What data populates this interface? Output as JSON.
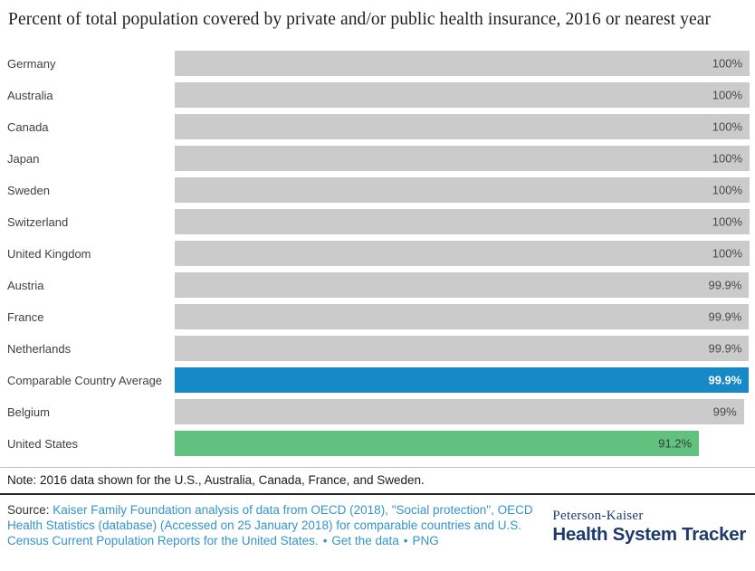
{
  "page": {
    "title": "Percent of total population covered by private and/or public health insurance, 2016 or nearest year"
  },
  "chart_data": {
    "type": "bar",
    "orientation": "horizontal",
    "title": "Percent of total population covered by private and/or public health insurance, 2016 or nearest year",
    "xlim": [
      0,
      100
    ],
    "grid": false,
    "legend": false,
    "categories": [
      "Germany",
      "Australia",
      "Canada",
      "Japan",
      "Sweden",
      "Switzerland",
      "United Kingdom",
      "Austria",
      "France",
      "Netherlands",
      "Comparable Country Average",
      "Belgium",
      "United States"
    ],
    "values": [
      100,
      100,
      100,
      100,
      100,
      100,
      100,
      99.9,
      99.9,
      99.9,
      99.9,
      99,
      91.2
    ],
    "value_labels": [
      "100%",
      "100%",
      "100%",
      "100%",
      "100%",
      "100%",
      "100%",
      "99.9%",
      "99.9%",
      "99.9%",
      "99.9%",
      "99%",
      "91.2%"
    ],
    "rows": [
      {
        "label": "Germany",
        "value": 100,
        "value_label": "100%",
        "type": "default"
      },
      {
        "label": "Australia",
        "value": 100,
        "value_label": "100%",
        "type": "default"
      },
      {
        "label": "Canada",
        "value": 100,
        "value_label": "100%",
        "type": "default"
      },
      {
        "label": "Japan",
        "value": 100,
        "value_label": "100%",
        "type": "default"
      },
      {
        "label": "Sweden",
        "value": 100,
        "value_label": "100%",
        "type": "default"
      },
      {
        "label": "Switzerland",
        "value": 100,
        "value_label": "100%",
        "type": "default"
      },
      {
        "label": "United Kingdom",
        "value": 100,
        "value_label": "100%",
        "type": "default"
      },
      {
        "label": "Austria",
        "value": 99.9,
        "value_label": "99.9%",
        "type": "default"
      },
      {
        "label": "France",
        "value": 99.9,
        "value_label": "99.9%",
        "type": "default"
      },
      {
        "label": "Netherlands",
        "value": 99.9,
        "value_label": "99.9%",
        "type": "default"
      },
      {
        "label": "Comparable Country Average",
        "value": 99.9,
        "value_label": "99.9%",
        "type": "average"
      },
      {
        "label": "Belgium",
        "value": 99,
        "value_label": "99%",
        "type": "default"
      },
      {
        "label": "United States",
        "value": 91.2,
        "value_label": "91.2%",
        "type": "us"
      }
    ],
    "colors": {
      "default": "#cbcbcb",
      "average": "#1789c6",
      "us": "#60c27e"
    }
  },
  "note": {
    "text": "Note: 2016 data shown for the U.S., Australia, Canada, France, and Sweden."
  },
  "source": {
    "prefix": "Source: ",
    "link_text": "Kaiser Family Foundation analysis of data from OECD (2018), \"Social protection\", OECD Health Statistics (database) (Accessed on 25 January 2018) for comparable countries and U.S. Census Current Population Reports for the United States.",
    "bullet": "•",
    "get_the_data_label": "Get the data",
    "png_label": "PNG",
    "link_color": "#3494cd"
  },
  "logo": {
    "line1": "Peterson-Kaiser",
    "line2": "Health System Tracker",
    "color": "#1e3a6d"
  }
}
